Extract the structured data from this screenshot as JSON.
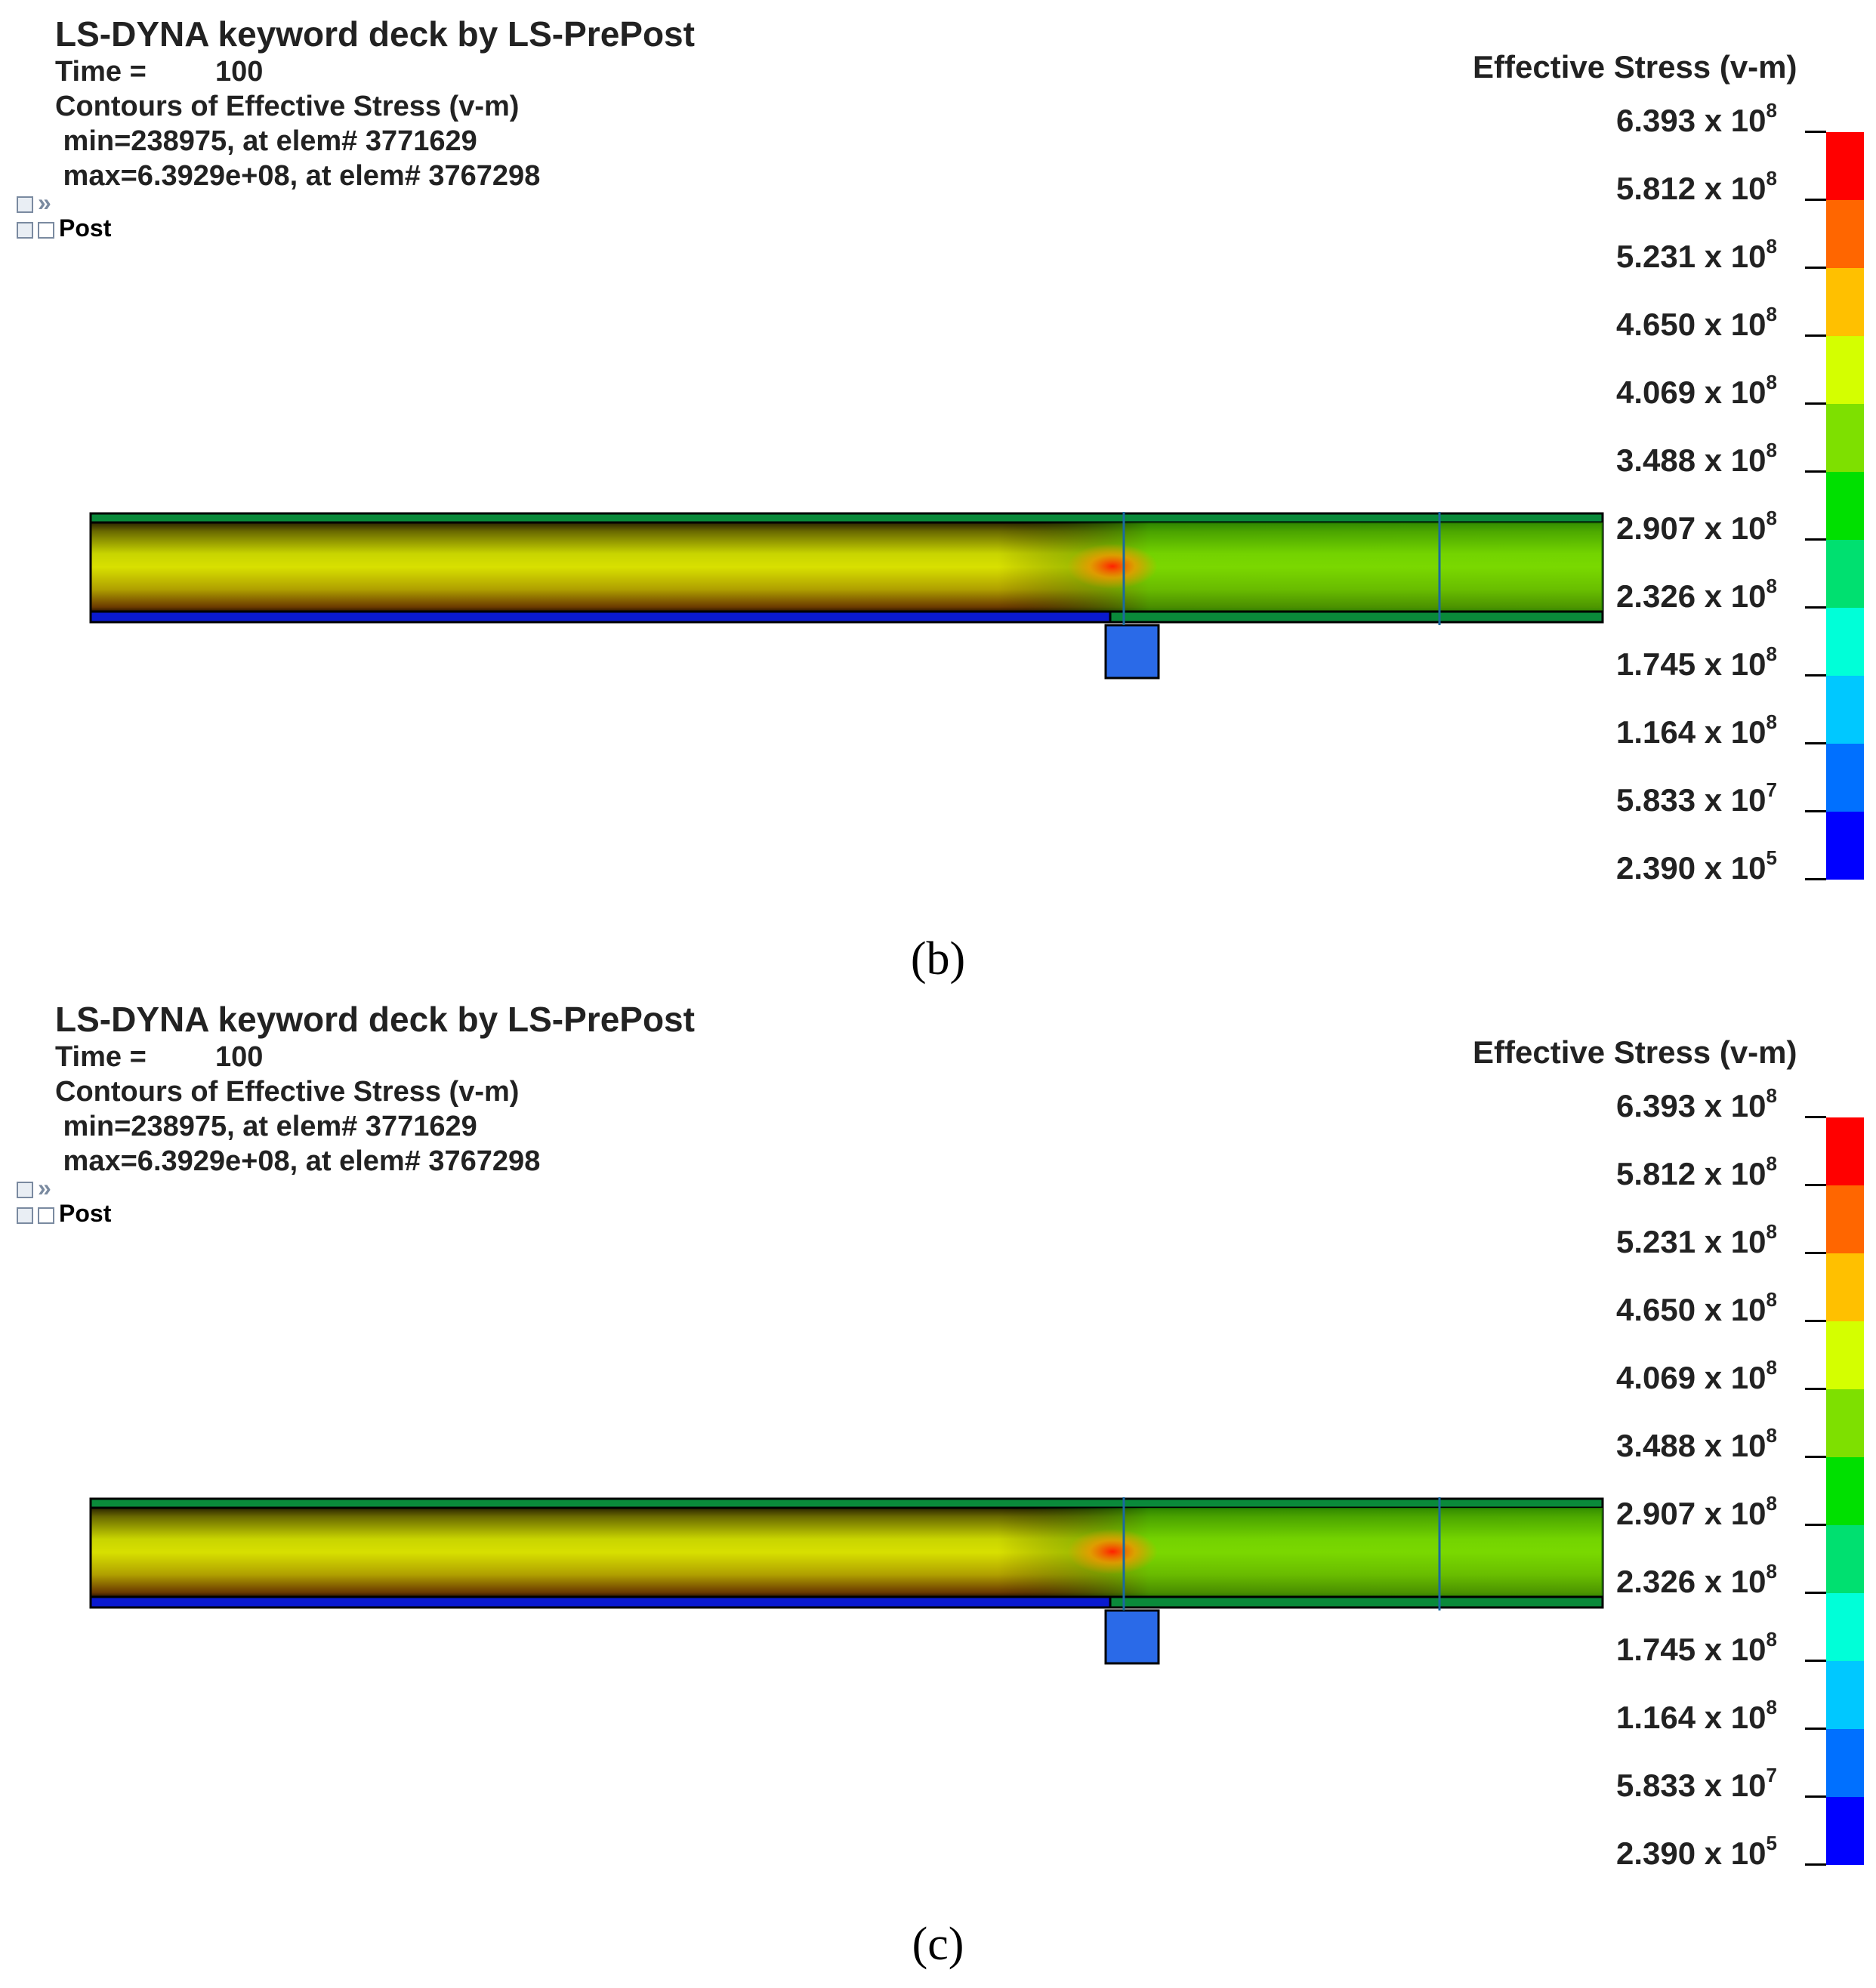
{
  "panels": [
    {
      "id": "b",
      "title": "LS-DYNA keyword deck by LS-PrePost",
      "time_label": "Time =",
      "time_value": "100",
      "contours_label": "Contours of Effective Stress (v-m)",
      "min_text": " min=238975, at elem# 3771629",
      "max_text": " max=6.3929e+08, at elem# 3767298",
      "tree_item": "Post",
      "legend_title": "Effective Stress (v-m)",
      "caption": "(b)"
    },
    {
      "id": "c",
      "title": "LS-DYNA keyword deck by LS-PrePost",
      "time_label": "Time =",
      "time_value": "100",
      "contours_label": "Contours of Effective Stress (v-m)",
      "min_text": " min=238975, at elem# 3771629",
      "max_text": " max=6.3929e+08, at elem# 3767298",
      "tree_item": "Post",
      "legend_title": "Effective Stress (v-m)",
      "caption": "(c)"
    }
  ],
  "legend_ticks": [
    {
      "mantissa": "6.393",
      "x": " x 10",
      "exp": "8"
    },
    {
      "mantissa": "5.812",
      "x": " x 10",
      "exp": "8"
    },
    {
      "mantissa": "5.231",
      "x": " x 10",
      "exp": "8"
    },
    {
      "mantissa": "4.650",
      "x": " x 10",
      "exp": "8"
    },
    {
      "mantissa": "4.069",
      "x": " x 10",
      "exp": "8"
    },
    {
      "mantissa": "3.488",
      "x": " x 10",
      "exp": "8"
    },
    {
      "mantissa": "2.907",
      "x": " x 10",
      "exp": "8"
    },
    {
      "mantissa": "2.326",
      "x": " x 10",
      "exp": "8"
    },
    {
      "mantissa": "1.745",
      "x": " x 10",
      "exp": "8"
    },
    {
      "mantissa": "1.164",
      "x": " x 10",
      "exp": "8"
    },
    {
      "mantissa": "5.833",
      "x": " x 10",
      "exp": "7"
    },
    {
      "mantissa": "2.390",
      "x": " x 10",
      "exp": "5"
    }
  ],
  "colorbar_colors": [
    "#ff0000",
    "#ff6600",
    "#ffc000",
    "#d4ff00",
    "#7ee000",
    "#00e000",
    "#00e070",
    "#00ffd8",
    "#00c8ff",
    "#0070ff",
    "#0000ff"
  ]
}
